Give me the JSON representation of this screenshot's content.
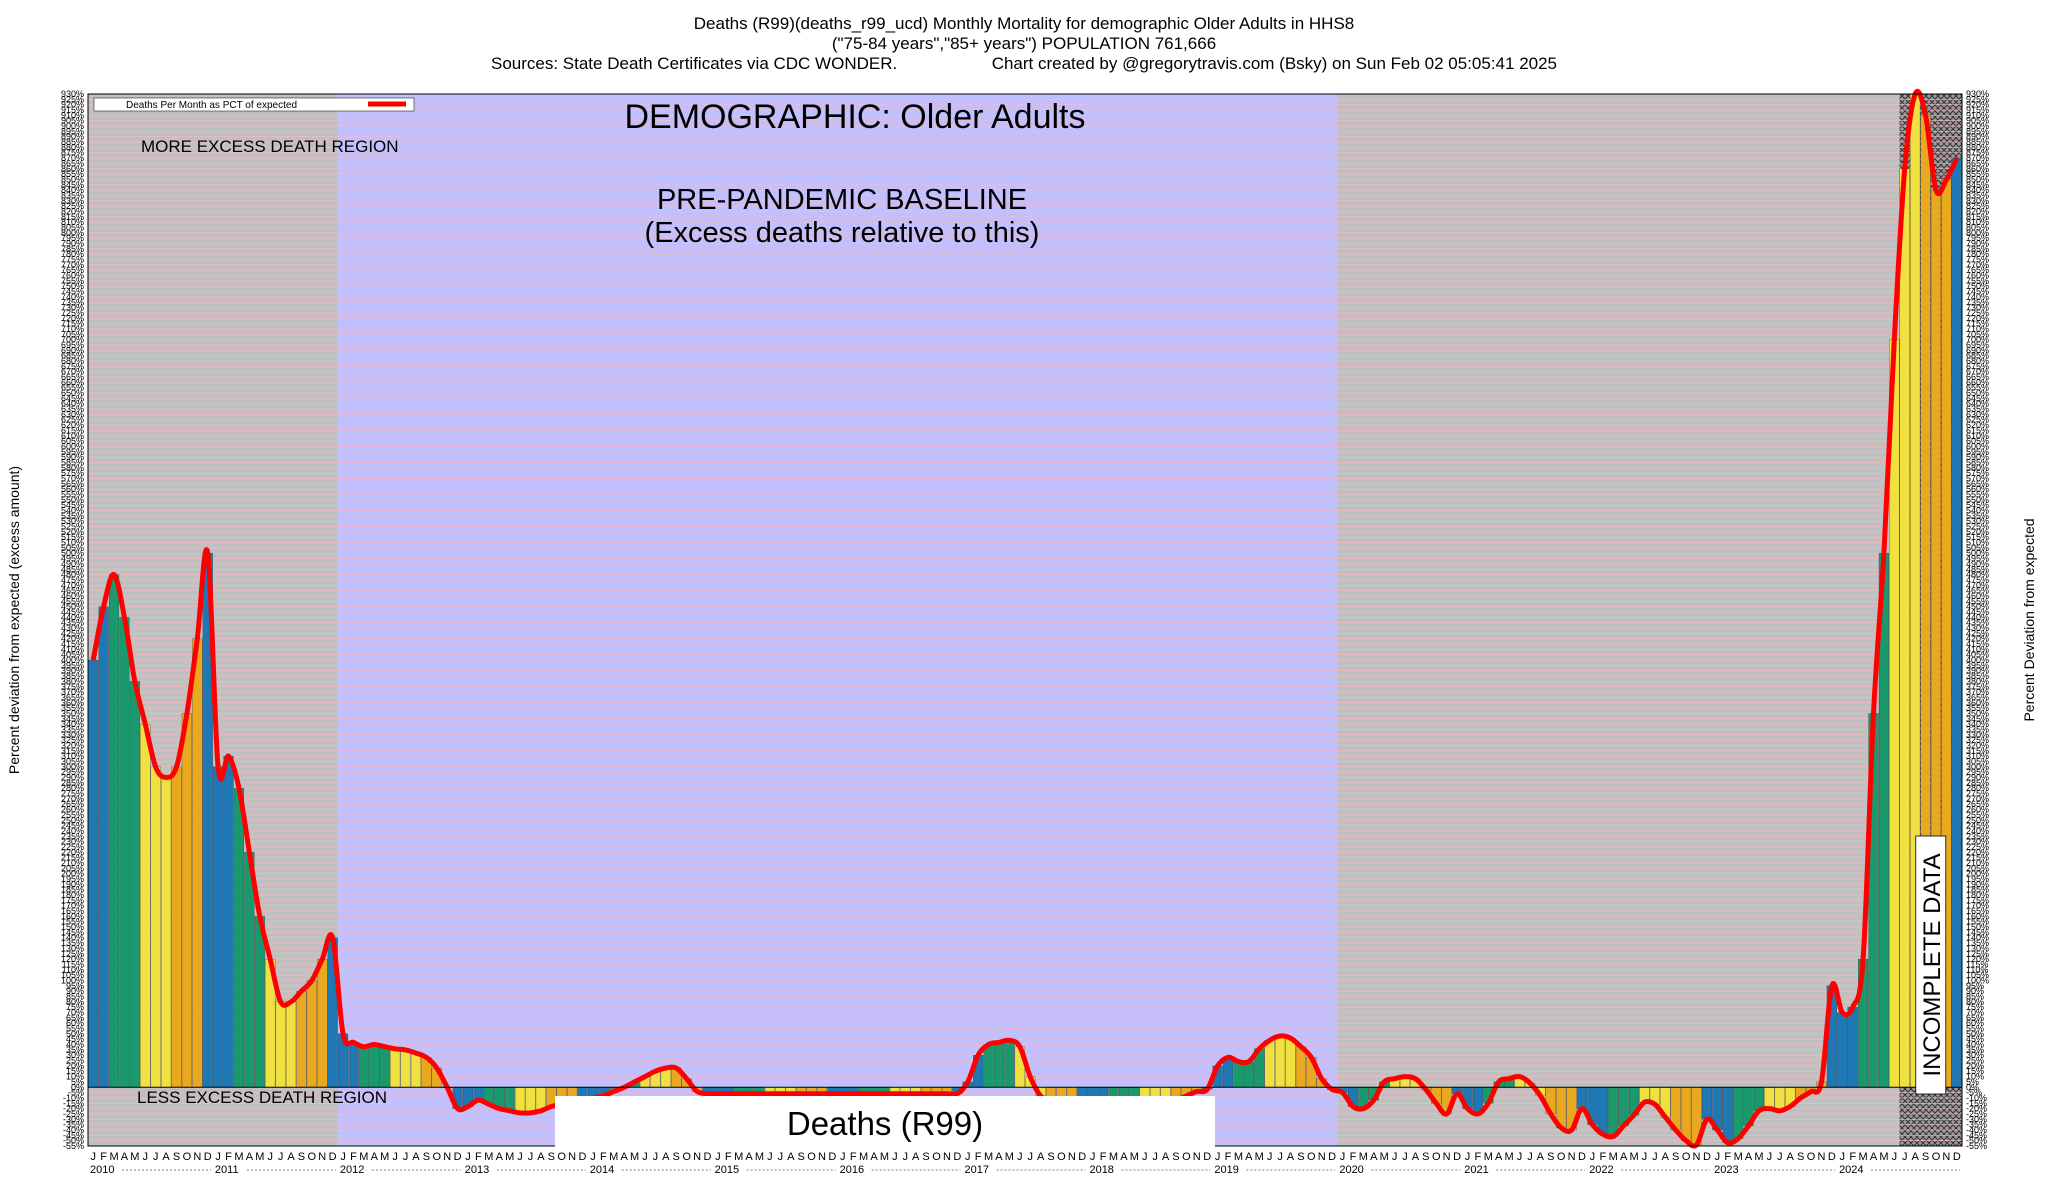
{
  "title": {
    "line1": "Deaths (R99)(deaths_r99_ucd) Monthly Mortality for demographic Older Adults in HHS8",
    "line2": "(\"75-84 years\",\"85+ years\") POPULATION 761,666",
    "line3_left": "Sources: State Death Certificates via CDC WONDER.",
    "line3_right": "Chart created by @gregorytravis.com (Bsky) on Sun Feb 02 05:05:41 2025"
  },
  "annotations": {
    "demographic": "DEMOGRAPHIC: Older Adults",
    "baseline_line1": "PRE-PANDEMIC BASELINE",
    "baseline_line2": "(Excess deaths relative to this)",
    "more_excess": "MORE EXCESS DEATH REGION",
    "less_excess": "LESS EXCESS DEATH REGION",
    "incomplete": "INCOMPLETE DATA",
    "series_box": "Deaths (R99)"
  },
  "legend": {
    "label": "Deaths Per Month as PCT of expected",
    "color": "#ff0000"
  },
  "colors": {
    "background_gray": "#c0c0c0",
    "baseline_blue": "#c0c0ff",
    "gridline": "#ffb6c1",
    "line": "#ff0000",
    "bar_winter": "#1f77b4",
    "bar_spring": "#1a9a6c",
    "bar_summer": "#f0e040",
    "bar_autumn": "#e8a820"
  },
  "chart_data": {
    "type": "bar",
    "ylabel_left": "Percent deviation from expected (excess amount)",
    "ylabel_right": "Percent Deviation from expected",
    "ylim": [
      -55,
      930
    ],
    "y_tick_step": 5,
    "baseline_period": [
      "2012-01",
      "2019-12"
    ],
    "incomplete_period": [
      "2024-07",
      "2024-12"
    ],
    "years": [
      "2010",
      "2011",
      "2012",
      "2013",
      "2014",
      "2015",
      "2016",
      "2017",
      "2018",
      "2019",
      "2020",
      "2021",
      "2022",
      "2023",
      "2024"
    ],
    "month_letters": [
      "J",
      "F",
      "M",
      "A",
      "M",
      "J",
      "J",
      "A",
      "S",
      "O",
      "N",
      "D"
    ],
    "values": [
      400,
      450,
      480,
      440,
      380,
      340,
      300,
      290,
      300,
      350,
      420,
      500,
      300,
      310,
      280,
      220,
      160,
      120,
      80,
      80,
      90,
      100,
      120,
      140,
      50,
      42,
      38,
      40,
      38,
      36,
      35,
      32,
      28,
      18,
      0,
      -20,
      -18,
      -12,
      -16,
      -20,
      -22,
      -24,
      -24,
      -22,
      -18,
      -16,
      -14,
      -12,
      -10,
      -8,
      -4,
      0,
      5,
      10,
      15,
      18,
      18,
      8,
      -4,
      -6,
      -6,
      -6,
      -6,
      -6,
      -6,
      -6,
      -6,
      -6,
      -6,
      -6,
      -6,
      -6,
      -6,
      -6,
      -6,
      -6,
      -6,
      -6,
      -6,
      -6,
      -6,
      -6,
      -6,
      -6,
      5,
      30,
      40,
      42,
      44,
      38,
      10,
      -8,
      -12,
      -12,
      -12,
      -12,
      -12,
      -12,
      -12,
      -12,
      -12,
      -12,
      -12,
      -12,
      -12,
      -8,
      -4,
      -2,
      20,
      28,
      24,
      24,
      36,
      44,
      48,
      46,
      38,
      28,
      8,
      -2,
      -5,
      -18,
      -20,
      -12,
      5,
      8,
      10,
      8,
      -2,
      -15,
      -25,
      -6,
      -20,
      -25,
      -15,
      5,
      8,
      10,
      4,
      -8,
      -25,
      -38,
      -40,
      -20,
      -35,
      -44,
      -46,
      -36,
      -26,
      -14,
      -16,
      -28,
      -40,
      -50,
      -54,
      -30,
      -40,
      -52,
      -48,
      -36,
      -22,
      -20,
      -22,
      -18,
      -10,
      -4,
      5,
      95,
      70,
      75,
      120,
      350,
      500,
      700,
      860,
      930,
      910,
      840,
      850,
      870
    ]
  }
}
